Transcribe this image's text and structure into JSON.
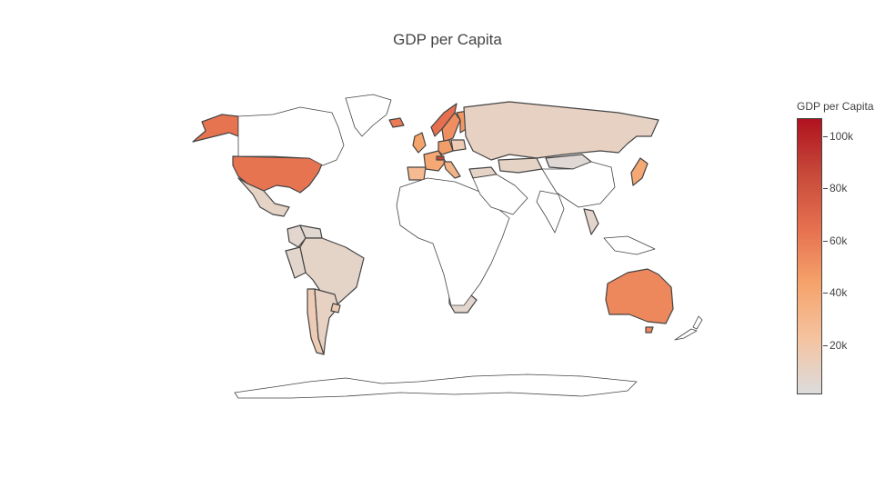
{
  "title": "GDP per Capita",
  "colorbar": {
    "title": "GDP per Capita",
    "min": 1000,
    "max": 107000,
    "ticks": [
      {
        "value": 20000,
        "label": "20k"
      },
      {
        "value": 40000,
        "label": "40k"
      },
      {
        "value": 60000,
        "label": "60k"
      },
      {
        "value": 80000,
        "label": "80k"
      },
      {
        "value": 100000,
        "label": "100k"
      }
    ],
    "colorscale": [
      "#dcdcdc",
      "#f5c3a0",
      "#f5a36b",
      "#e6704f",
      "#c74a3a",
      "#b0121f"
    ]
  },
  "colors": {
    "land_outline": "#444444",
    "no_data_fill": "#ffffff"
  },
  "chart_data": {
    "type": "choropleth",
    "metric": "GDP per Capita",
    "regions": [
      {
        "name": "United States",
        "value": 63000
      },
      {
        "name": "Alaska (United States)",
        "value": 63000
      },
      {
        "name": "Canada",
        "value": null
      },
      {
        "name": "Greenland",
        "value": null
      },
      {
        "name": "Mexico",
        "value": 9000
      },
      {
        "name": "Colombia",
        "value": 6000
      },
      {
        "name": "Venezuela",
        "value": 5000
      },
      {
        "name": "Peru",
        "value": 6500
      },
      {
        "name": "Brazil",
        "value": 8000
      },
      {
        "name": "Chile",
        "value": 15000
      },
      {
        "name": "Argentina",
        "value": 10000
      },
      {
        "name": "Uruguay",
        "value": 16000
      },
      {
        "name": "United Kingdom",
        "value": 43000
      },
      {
        "name": "Norway",
        "value": 65000
      },
      {
        "name": "Sweden",
        "value": 52000
      },
      {
        "name": "Finland",
        "value": 48000
      },
      {
        "name": "Iceland",
        "value": 60000
      },
      {
        "name": "Germany",
        "value": 46000
      },
      {
        "name": "France",
        "value": 40000
      },
      {
        "name": "Spain",
        "value": 28000
      },
      {
        "name": "Italy",
        "value": 32000
      },
      {
        "name": "Switzerland",
        "value": 87000
      },
      {
        "name": "Poland",
        "value": 15000
      },
      {
        "name": "Turkey",
        "value": 9000
      },
      {
        "name": "Russia",
        "value": 10000
      },
      {
        "name": "Kazakhstan",
        "value": 9000
      },
      {
        "name": "Mongolia",
        "value": 4000
      },
      {
        "name": "Japan",
        "value": 40000
      },
      {
        "name": "Thailand",
        "value": 7000
      },
      {
        "name": "South Africa",
        "value": 6000
      },
      {
        "name": "Australia",
        "value": 55000
      },
      {
        "name": "Tasmania (Australia)",
        "value": 55000
      },
      {
        "name": "New Zealand",
        "value": null
      },
      {
        "name": "Africa (other)",
        "value": null
      },
      {
        "name": "Middle East",
        "value": null
      },
      {
        "name": "China",
        "value": null
      },
      {
        "name": "India",
        "value": null
      },
      {
        "name": "Southeast Asia (other)",
        "value": null
      },
      {
        "name": "Antarctica",
        "value": null
      }
    ]
  }
}
